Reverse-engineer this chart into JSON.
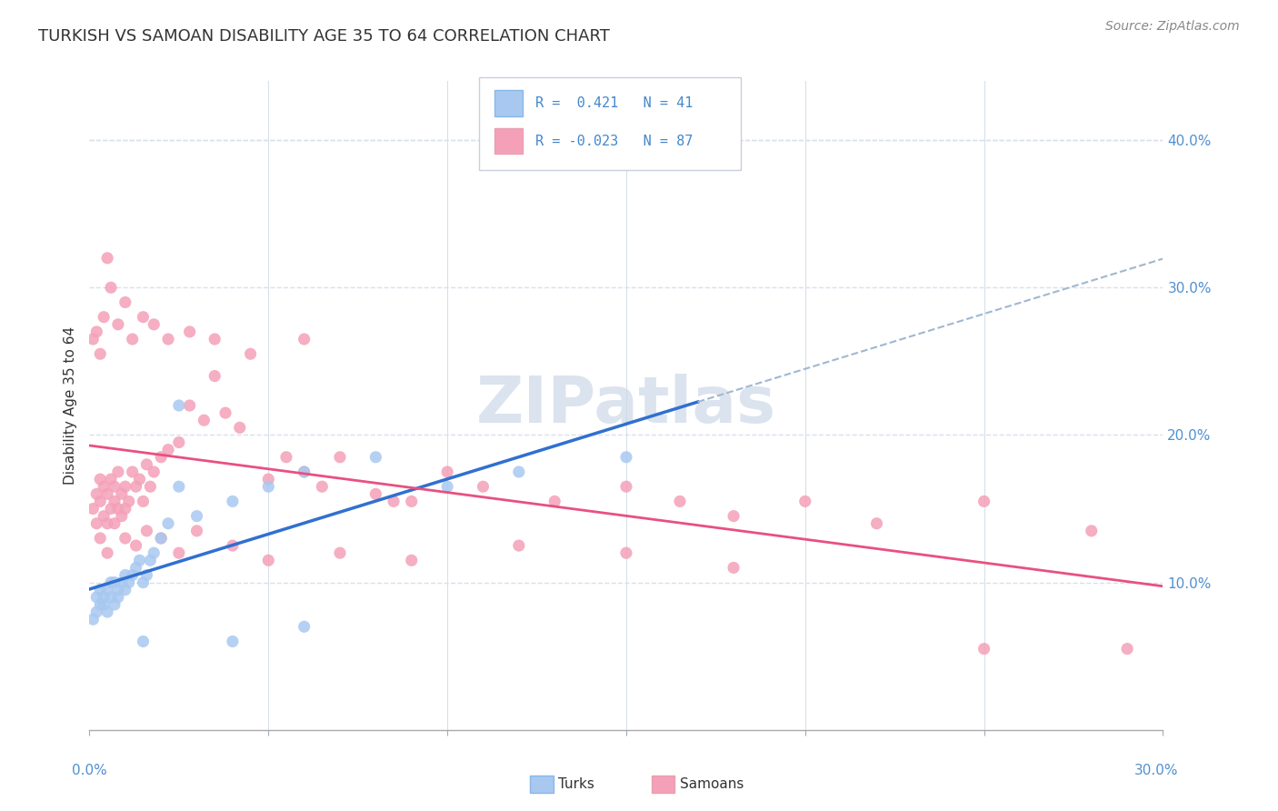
{
  "title": "TURKISH VS SAMOAN DISABILITY AGE 35 TO 64 CORRELATION CHART",
  "source": "Source: ZipAtlas.com",
  "ylabel": "Disability Age 35 to 64",
  "turks_R": 0.421,
  "turks_N": 41,
  "samoans_R": -0.023,
  "samoans_N": 87,
  "turk_color": "#a8c8f0",
  "samoan_color": "#f4a0b8",
  "turk_line_color": "#3070d0",
  "samoan_line_color": "#e85080",
  "dashed_line_color": "#a0b8d0",
  "watermark_color": "#ccd8e8",
  "background_color": "#ffffff",
  "grid_color": "#d8e0ec",
  "legend_border_color": "#c8d0dc",
  "xlim": [
    0.0,
    0.3
  ],
  "ylim": [
    0.0,
    0.44
  ],
  "yticks": [
    0.1,
    0.2,
    0.3,
    0.4
  ],
  "ytick_labels": [
    "10.0%",
    "20.0%",
    "30.0%",
    "40.0%"
  ],
  "turks_x": [
    0.001,
    0.002,
    0.002,
    0.003,
    0.003,
    0.004,
    0.004,
    0.005,
    0.005,
    0.006,
    0.006,
    0.007,
    0.007,
    0.008,
    0.008,
    0.009,
    0.01,
    0.01,
    0.011,
    0.012,
    0.013,
    0.014,
    0.015,
    0.016,
    0.017,
    0.018,
    0.02,
    0.022,
    0.025,
    0.03,
    0.04,
    0.05,
    0.06,
    0.08,
    0.1,
    0.12,
    0.15,
    0.04,
    0.025,
    0.06,
    0.015
  ],
  "turks_y": [
    0.075,
    0.08,
    0.09,
    0.085,
    0.095,
    0.085,
    0.09,
    0.08,
    0.095,
    0.09,
    0.1,
    0.085,
    0.1,
    0.09,
    0.095,
    0.1,
    0.095,
    0.105,
    0.1,
    0.105,
    0.11,
    0.115,
    0.1,
    0.105,
    0.115,
    0.12,
    0.13,
    0.14,
    0.165,
    0.145,
    0.155,
    0.165,
    0.175,
    0.185,
    0.165,
    0.175,
    0.185,
    0.06,
    0.22,
    0.07,
    0.06
  ],
  "samoans_x": [
    0.001,
    0.002,
    0.002,
    0.003,
    0.003,
    0.004,
    0.004,
    0.005,
    0.005,
    0.006,
    0.006,
    0.007,
    0.007,
    0.008,
    0.008,
    0.009,
    0.009,
    0.01,
    0.01,
    0.011,
    0.012,
    0.013,
    0.014,
    0.015,
    0.016,
    0.017,
    0.018,
    0.02,
    0.022,
    0.025,
    0.028,
    0.032,
    0.035,
    0.038,
    0.042,
    0.05,
    0.055,
    0.06,
    0.065,
    0.07,
    0.08,
    0.09,
    0.1,
    0.11,
    0.13,
    0.15,
    0.165,
    0.18,
    0.2,
    0.22,
    0.25,
    0.28,
    0.29,
    0.003,
    0.005,
    0.007,
    0.01,
    0.013,
    0.016,
    0.02,
    0.025,
    0.03,
    0.04,
    0.05,
    0.07,
    0.09,
    0.12,
    0.15,
    0.18,
    0.25,
    0.001,
    0.002,
    0.003,
    0.004,
    0.005,
    0.006,
    0.008,
    0.01,
    0.012,
    0.015,
    0.018,
    0.022,
    0.028,
    0.035,
    0.045,
    0.06,
    0.085
  ],
  "samoans_y": [
    0.15,
    0.14,
    0.16,
    0.155,
    0.17,
    0.145,
    0.165,
    0.14,
    0.16,
    0.15,
    0.17,
    0.155,
    0.165,
    0.15,
    0.175,
    0.145,
    0.16,
    0.15,
    0.165,
    0.155,
    0.175,
    0.165,
    0.17,
    0.155,
    0.18,
    0.165,
    0.175,
    0.185,
    0.19,
    0.195,
    0.22,
    0.21,
    0.24,
    0.215,
    0.205,
    0.17,
    0.185,
    0.175,
    0.165,
    0.185,
    0.16,
    0.155,
    0.175,
    0.165,
    0.155,
    0.165,
    0.155,
    0.145,
    0.155,
    0.14,
    0.155,
    0.135,
    0.055,
    0.13,
    0.12,
    0.14,
    0.13,
    0.125,
    0.135,
    0.13,
    0.12,
    0.135,
    0.125,
    0.115,
    0.12,
    0.115,
    0.125,
    0.12,
    0.11,
    0.055,
    0.265,
    0.27,
    0.255,
    0.28,
    0.32,
    0.3,
    0.275,
    0.29,
    0.265,
    0.28,
    0.275,
    0.265,
    0.27,
    0.265,
    0.255,
    0.265,
    0.155
  ]
}
